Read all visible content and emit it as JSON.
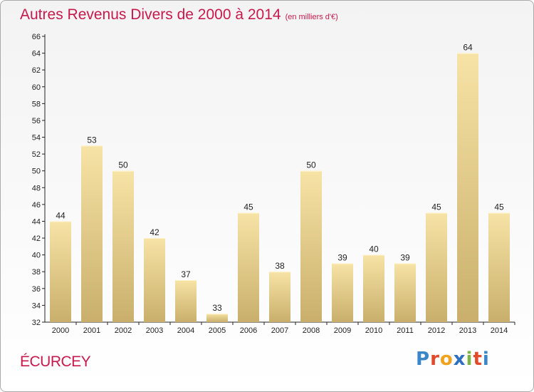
{
  "title": "Autres Revenus Divers de 2000 à 2014",
  "subtitle": "(en milliers d'€)",
  "place": "ÉCURCEY",
  "logo": {
    "letters": [
      "P",
      "r",
      "o",
      "x",
      "i",
      "t",
      "i"
    ],
    "colors": [
      "#3a86c8",
      "#e24a2a",
      "#f0a21c",
      "#2f6fc0",
      "#7cb342",
      "#e24a2a",
      "#3a86c8"
    ]
  },
  "colors": {
    "accent": "#c8194d",
    "bar_light": "#f7e3a6",
    "bar_dark": "#c9af6b"
  },
  "chart_data": {
    "type": "bar",
    "categories": [
      "2000",
      "2001",
      "2002",
      "2003",
      "2004",
      "2005",
      "2006",
      "2007",
      "2008",
      "2009",
      "2010",
      "2011",
      "2012",
      "2013",
      "2014"
    ],
    "values": [
      44,
      53,
      50,
      42,
      37,
      33,
      45,
      38,
      50,
      39,
      40,
      39,
      45,
      64,
      45
    ],
    "xlabel": "",
    "ylabel": "",
    "ylim": [
      32,
      66
    ],
    "yticks": [
      32,
      34,
      36,
      38,
      40,
      42,
      44,
      46,
      48,
      50,
      52,
      54,
      56,
      58,
      60,
      62,
      64,
      66
    ],
    "grid": false,
    "data_labels": true
  }
}
